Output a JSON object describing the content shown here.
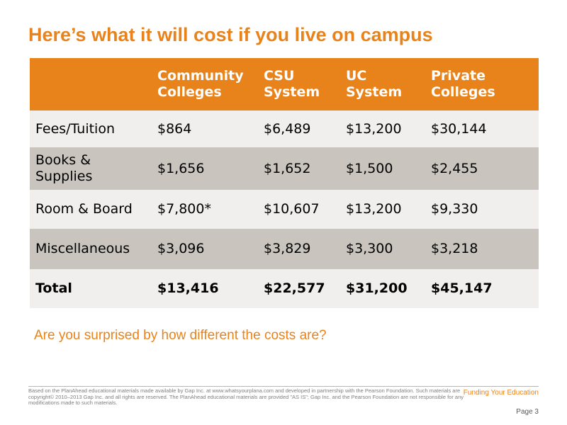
{
  "slide": {
    "title": "Here’s what it will cost if you live on campus",
    "question": "Are you surprised by how different the costs are?"
  },
  "table": {
    "columns": [
      "",
      "Community Colleges",
      "CSU System",
      "UC System",
      "Private Colleges"
    ],
    "rows": [
      [
        "Fees/Tuition",
        "$864",
        "$6,489",
        "$13,200",
        "$30,144"
      ],
      [
        "Books & Supplies",
        "$1,656",
        "$1,652",
        "$1,500",
        "$2,455"
      ],
      [
        "Room & Board",
        "$7,800*",
        "$10,607",
        "$13,200",
        "$9,330"
      ],
      [
        "Miscellaneous",
        "$3,096",
        "$3,829",
        "$3,300",
        "$3,218"
      ],
      [
        "Total",
        "$13,416",
        "$22,577",
        "$31,200",
        "$45,147"
      ]
    ]
  },
  "footer": {
    "disclaimer": "Based on the PlanAhead educational materials made available by Gap Inc. at www.whatsyourplana.com and developed in partnership with the Pearson Foundation. Such materials are copyright© 2010–2013 Gap Inc. and all rights are reserved. The PlanAhead educational materials are provided \"AS IS\"; Gap Inc. and the Pearson Foundation are not responsible for any modifications made to such materials.",
    "section_label": "Funding Your Education",
    "page_label": "Page 3"
  },
  "colors": {
    "accent": "#e8831b",
    "header_bg": "#e8831b",
    "row_light": "#f0efed",
    "row_dark": "#c9c5be"
  }
}
